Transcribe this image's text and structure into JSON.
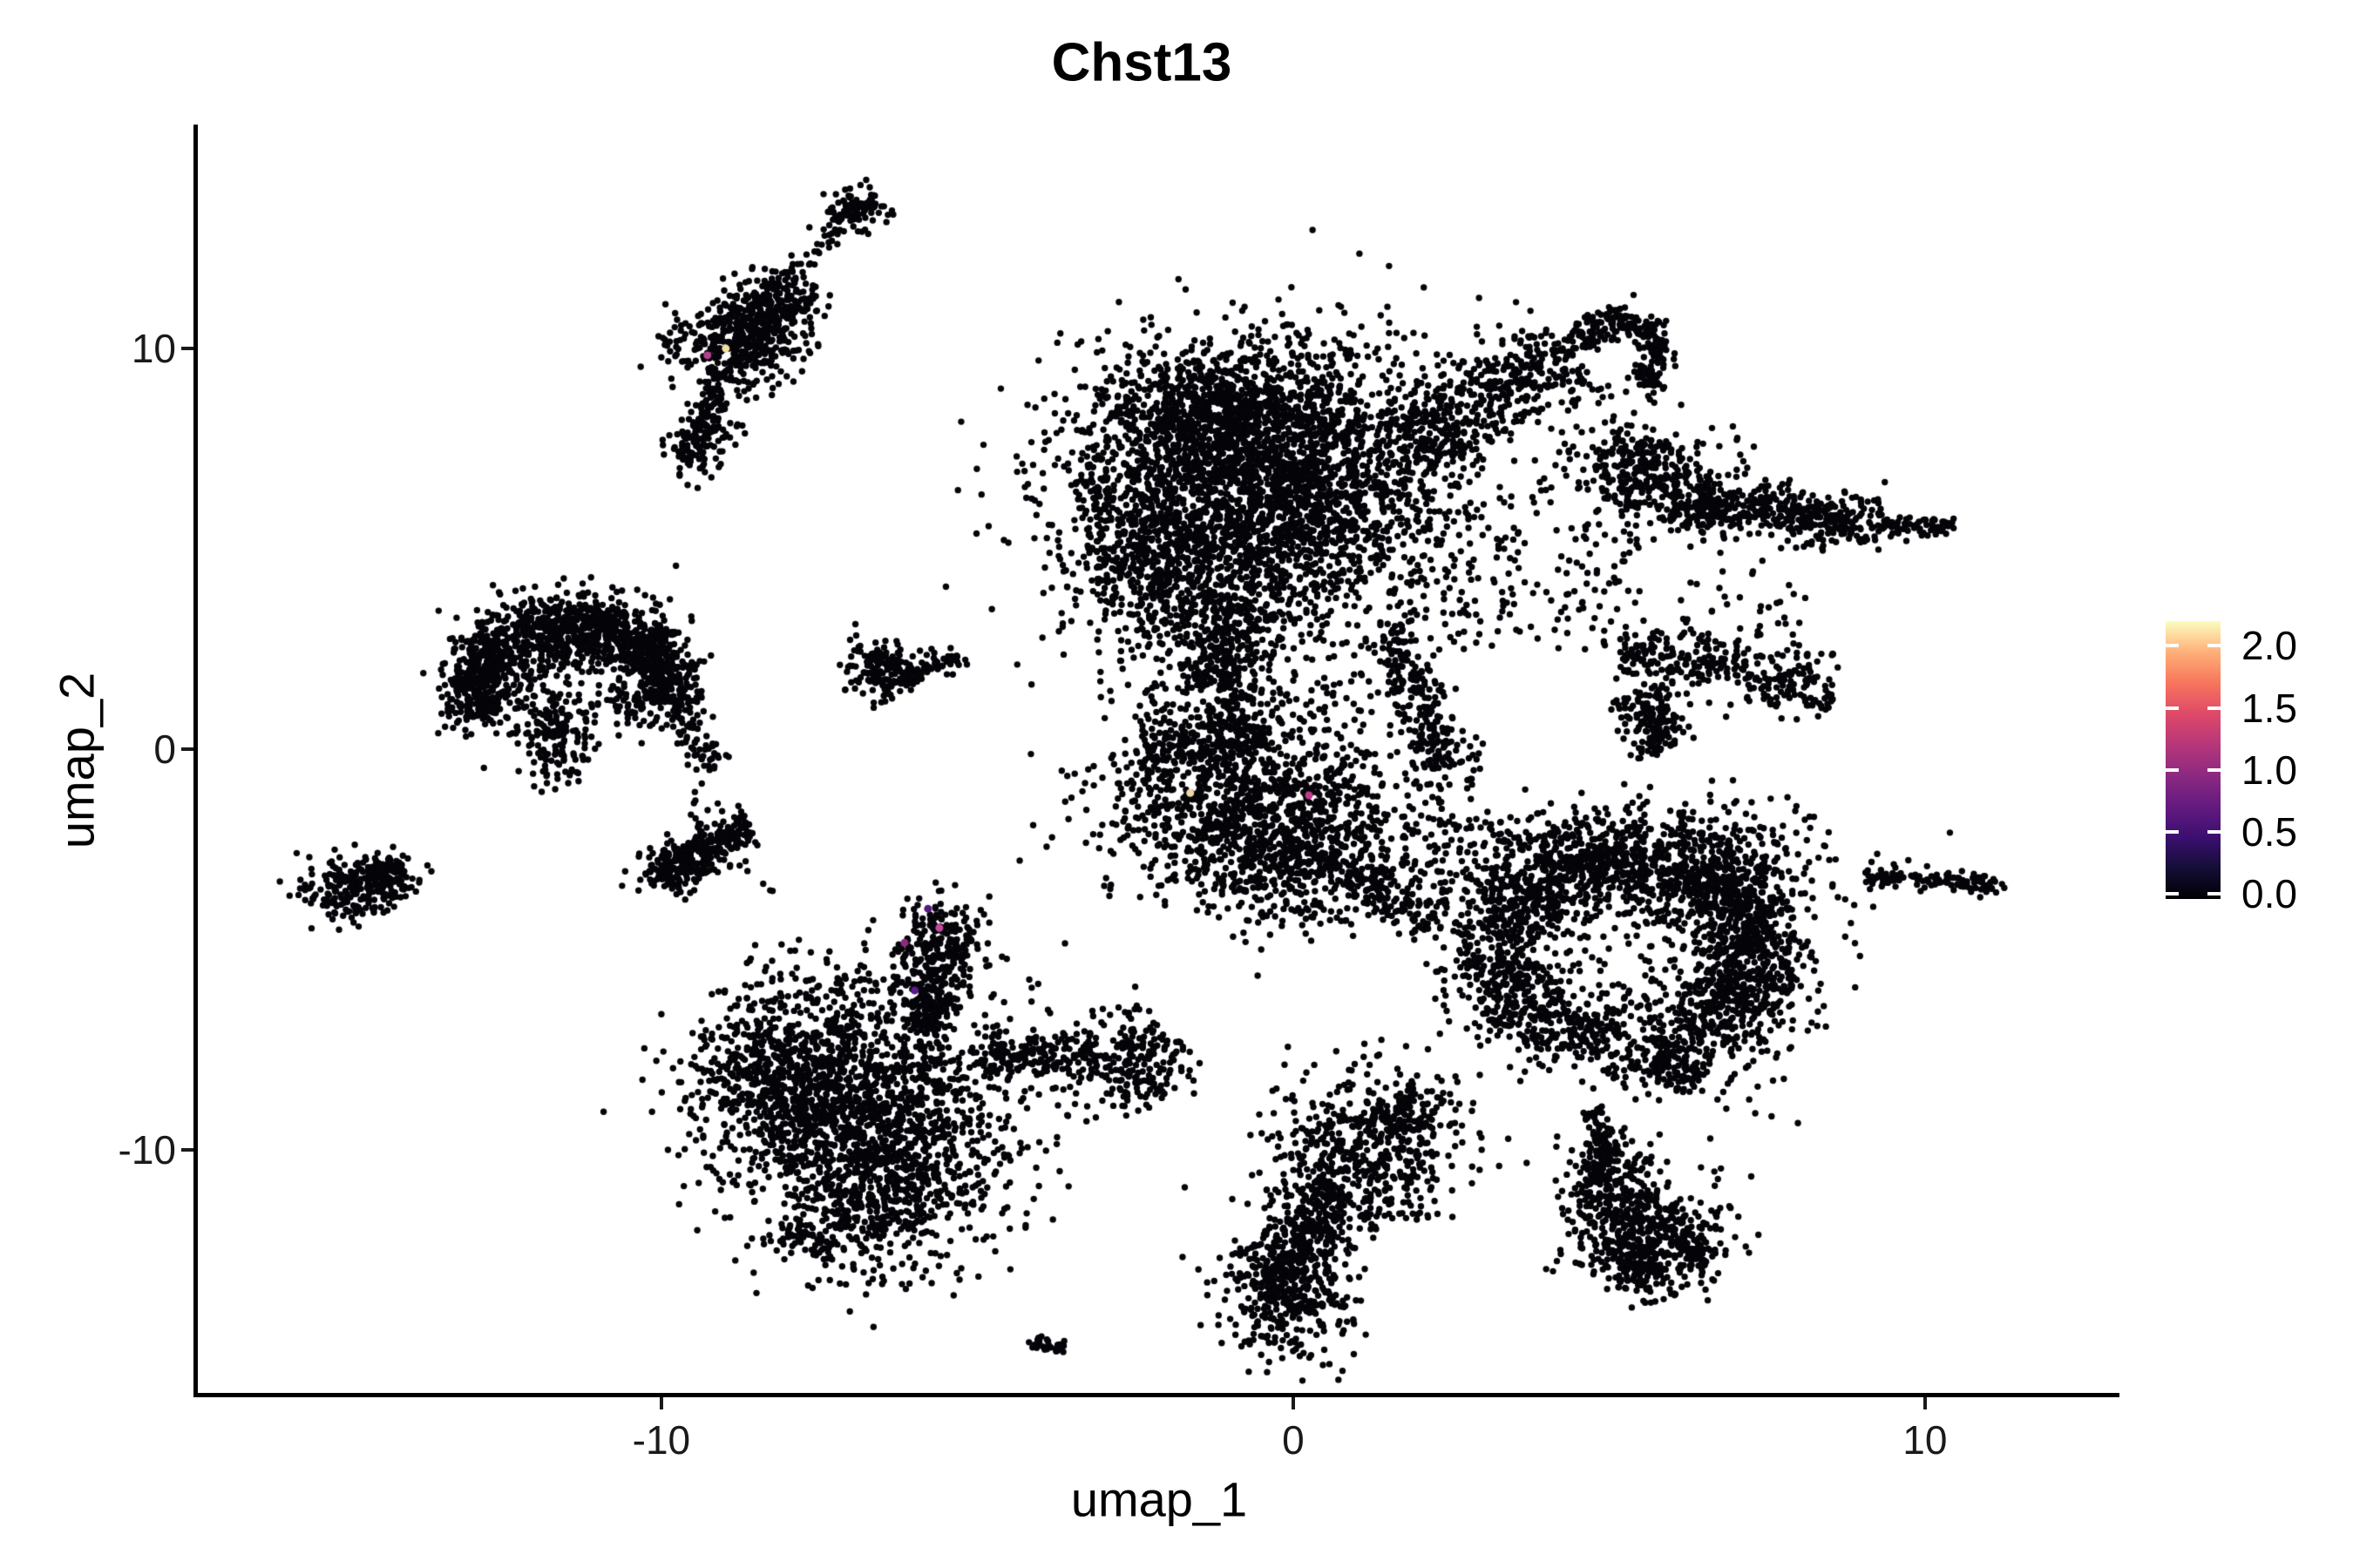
{
  "chart_data": {
    "type": "scatter",
    "title": "Chst13",
    "xlabel": "umap_1",
    "ylabel": "umap_2",
    "xlim": [
      -17.35,
      13.05
    ],
    "ylim": [
      -16.13,
      15.59
    ],
    "x_ticks": [
      -10,
      0,
      10
    ],
    "x_tick_labels": [
      "-10",
      "0",
      "10"
    ],
    "y_ticks": [
      -10,
      0,
      10
    ],
    "y_tick_labels": [
      "-10",
      "0",
      "10"
    ],
    "grid": false,
    "point_color": "#050409",
    "point_radius_px": 3.7,
    "legend": {
      "position": "right",
      "title": "",
      "range": [
        -0.04,
        2.2
      ],
      "ticks": [
        0.0,
        0.5,
        1.0,
        1.5,
        2.0
      ],
      "tick_labels": [
        "0.0",
        "0.5",
        "1.0",
        "1.5",
        "2.0"
      ],
      "colors": [
        "#000004",
        "#140e36",
        "#3b0f70",
        "#641a80",
        "#8c2981",
        "#b73779",
        "#de4968",
        "#f8765c",
        "#feb078",
        "#fcfdbf"
      ]
    },
    "clusters": [
      {
        "t": "band",
        "n": 90,
        "x1": -6.81,
        "y1": 13.7,
        "x2": -8.4,
        "y2": 11.2,
        "w": 0.15
      },
      {
        "t": "blob",
        "n": 70,
        "cx": -6.88,
        "cy": 13.52,
        "sx": 0.25,
        "sy": 0.26,
        "rot": -40
      },
      {
        "t": "blob",
        "n": 450,
        "cx": -8.74,
        "cy": 10.22,
        "sx": 0.52,
        "sy": 0.65,
        "rot": -35
      },
      {
        "t": "blob",
        "n": 160,
        "cx": -8.19,
        "cy": 10.98,
        "sx": 0.36,
        "sy": 0.39,
        "rot": -35
      },
      {
        "t": "band",
        "n": 70,
        "x1": -9.13,
        "y1": 9.39,
        "x2": -9.27,
        "y2": 7.72,
        "w": 0.2
      },
      {
        "t": "blob",
        "n": 110,
        "cx": -9.43,
        "cy": 7.72,
        "sx": 0.23,
        "sy": 0.48,
        "rot": 0
      },
      {
        "t": "scatter",
        "n": 8,
        "cx": -8.77,
        "cy": 7.89,
        "w": 0.55,
        "h": 0.76
      },
      {
        "t": "ring",
        "n": 700,
        "cx": -11.39,
        "cy": 1.41,
        "rx": 1.59,
        "ry": 1.85,
        "th": 0.5,
        "a0": -10,
        "a1": 200
      },
      {
        "t": "blob",
        "n": 200,
        "cx": -12.74,
        "cy": 1.63,
        "sx": 0.39,
        "sy": 0.7,
        "rot": 0
      },
      {
        "t": "blob",
        "n": 350,
        "cx": -11.43,
        "cy": 2.93,
        "sx": 0.72,
        "sy": 0.52,
        "rot": 8
      },
      {
        "t": "blob",
        "n": 240,
        "cx": -10.29,
        "cy": 2.0,
        "sx": 0.39,
        "sy": 0.65,
        "rot": 0
      },
      {
        "t": "blob",
        "n": 150,
        "cx": -11.64,
        "cy": 0.17,
        "sx": 0.28,
        "sy": 0.52,
        "rot": 0
      },
      {
        "t": "scatter",
        "n": 55,
        "cx": -11.37,
        "cy": 1.52,
        "w": 1.5,
        "h": 2.0
      },
      {
        "t": "band",
        "n": 70,
        "x1": -9.82,
        "y1": 1.04,
        "x2": -9.19,
        "y2": -0.54,
        "w": 0.22
      },
      {
        "t": "scatter",
        "n": 6,
        "cx": -9.3,
        "cy": -1.2,
        "w": 0.5,
        "h": 0.9
      },
      {
        "t": "blob",
        "n": 210,
        "cx": -14.84,
        "cy": -3.48,
        "sx": 0.41,
        "sy": 0.41,
        "rot": -12
      },
      {
        "t": "blob",
        "n": 70,
        "cx": -14.29,
        "cy": -3.04,
        "sx": 0.22,
        "sy": 0.26,
        "rot": 0
      },
      {
        "t": "scatter",
        "n": 2,
        "cx": -15.64,
        "cy": -3.37,
        "w": 0.2,
        "h": 0.2
      },
      {
        "t": "band",
        "n": 240,
        "x1": -10.01,
        "y1": -3.11,
        "x2": -8.58,
        "y2": -1.96,
        "w": 0.33
      },
      {
        "t": "blob",
        "n": 90,
        "cx": -9.85,
        "cy": -3.0,
        "sx": 0.28,
        "sy": 0.33,
        "rot": 0
      },
      {
        "t": "scatter",
        "n": 3,
        "cx": -8.36,
        "cy": -3.48,
        "w": 0.3,
        "h": 0.3
      },
      {
        "t": "blob",
        "n": 150,
        "cx": -6.51,
        "cy": 1.96,
        "sx": 0.26,
        "sy": 0.39,
        "rot": 0
      },
      {
        "t": "band",
        "n": 65,
        "x1": -6.23,
        "y1": 1.74,
        "x2": -5.13,
        "y2": 2.33,
        "w": 0.13
      },
      {
        "t": "scatter",
        "n": 4,
        "cx": -5.74,
        "cy": 2.46,
        "w": 0.85,
        "h": 0.2
      },
      {
        "t": "blob",
        "n": 240,
        "cx": -5.6,
        "cy": -4.96,
        "sx": 0.34,
        "sy": 0.65,
        "rot": 0
      },
      {
        "t": "band",
        "n": 130,
        "x1": -5.64,
        "y1": -5.76,
        "x2": -5.88,
        "y2": -7.07,
        "w": 0.3
      },
      {
        "t": "blob",
        "n": 1500,
        "cx": -6.79,
        "cy": -8.87,
        "sx": 1.13,
        "sy": 1.57,
        "rot": 0
      },
      {
        "t": "blob",
        "n": 420,
        "cx": -8.3,
        "cy": -8.22,
        "sx": 0.62,
        "sy": 1.2,
        "rot": 0
      },
      {
        "t": "blob",
        "n": 450,
        "cx": -6.61,
        "cy": -11.13,
        "sx": 0.76,
        "sy": 0.98,
        "rot": 0
      },
      {
        "t": "band",
        "n": 170,
        "x1": -4.91,
        "y1": -7.57,
        "x2": -3.09,
        "y2": -7.78,
        "w": 0.3
      },
      {
        "t": "blob",
        "n": 210,
        "cx": -2.51,
        "cy": -7.83,
        "sx": 0.37,
        "sy": 0.65,
        "rot": 0
      },
      {
        "t": "scatter",
        "n": 90,
        "cx": -5.99,
        "cy": -8.7,
        "w": 5.0,
        "h": 6.5
      },
      {
        "t": "band",
        "n": 45,
        "x1": -8.03,
        "y1": -12.0,
        "x2": -7.26,
        "y2": -12.61,
        "w": 0.17
      },
      {
        "t": "band",
        "n": 28,
        "x1": -4.17,
        "y1": -14.74,
        "x2": -3.59,
        "y2": -15.0,
        "w": 0.1
      },
      {
        "t": "blob",
        "n": 2800,
        "cx": -0.4,
        "cy": 6.41,
        "sx": 1.54,
        "sy": 1.78,
        "rot": -5
      },
      {
        "t": "blob",
        "n": 650,
        "cx": -1.16,
        "cy": 8.3,
        "sx": 1.08,
        "sy": 0.72,
        "rot": 0
      },
      {
        "t": "blob",
        "n": 520,
        "cx": -2.15,
        "cy": 4.67,
        "sx": 0.69,
        "sy": 1.2,
        "rot": 0
      },
      {
        "t": "band",
        "n": 280,
        "x1": -0.77,
        "y1": 3.8,
        "x2": -1.32,
        "y2": 1.48,
        "w": 0.55
      },
      {
        "t": "band",
        "n": 220,
        "x1": 1.49,
        "y1": 3.0,
        "x2": 2.43,
        "y2": -0.48,
        "w": 0.35
      },
      {
        "t": "band",
        "n": 450,
        "x1": 1.9,
        "y1": 7.43,
        "x2": 4.39,
        "y2": 10.04,
        "w": 0.57
      },
      {
        "t": "ring",
        "n": 240,
        "cx": 5.14,
        "cy": 9.83,
        "rx": 0.66,
        "ry": 0.83,
        "th": 0.3,
        "a0": -60,
        "a1": 170
      },
      {
        "t": "scatter",
        "n": 30,
        "cx": 4.98,
        "cy": 8.59,
        "w": 1.5,
        "h": 1.5
      },
      {
        "t": "blob",
        "n": 340,
        "cx": 5.63,
        "cy": 6.78,
        "sx": 0.62,
        "sy": 0.61,
        "rot": 15
      },
      {
        "t": "band",
        "n": 450,
        "x1": 5.99,
        "y1": 6.13,
        "x2": 9.35,
        "y2": 5.65,
        "w": 0.35
      },
      {
        "t": "band",
        "n": 70,
        "x1": 9.35,
        "y1": 5.65,
        "x2": 10.46,
        "y2": 5.48,
        "w": 0.16
      },
      {
        "t": "band",
        "n": 320,
        "x1": 5.21,
        "y1": 2.57,
        "x2": 8.58,
        "y2": 1.41,
        "w": 0.45
      },
      {
        "t": "band",
        "n": 170,
        "x1": 5.46,
        "y1": 1.48,
        "x2": 5.85,
        "y2": -0.09,
        "w": 0.38
      },
      {
        "t": "scatter",
        "n": 130,
        "cx": 4.01,
        "cy": 4.02,
        "w": 3.4,
        "h": 3.2
      },
      {
        "t": "scatter",
        "n": 60,
        "cx": 0.22,
        "cy": 9.83,
        "w": 5.5,
        "h": 1.3
      },
      {
        "t": "scatter",
        "n": 30,
        "cx": 7.12,
        "cy": 3.48,
        "w": 2.0,
        "h": 2.0
      },
      {
        "t": "scatter",
        "n": 40,
        "cx": -2.95,
        "cy": 6.52,
        "w": 1.0,
        "h": 2.5
      },
      {
        "t": "blob",
        "n": 1150,
        "cx": -0.58,
        "cy": -1.35,
        "sx": 1.21,
        "sy": 1.26,
        "rot": -15
      },
      {
        "t": "blob",
        "n": 420,
        "cx": 0.25,
        "cy": -2.78,
        "sx": 0.94,
        "sy": 0.72,
        "rot": -18
      },
      {
        "t": "band",
        "n": 220,
        "x1": -2.37,
        "y1": -0.04,
        "x2": -0.44,
        "y2": 0.48,
        "w": 0.45
      },
      {
        "t": "band",
        "n": 90,
        "x1": 1.08,
        "y1": -3.3,
        "x2": 2.18,
        "y2": -4.39,
        "w": 0.3
      },
      {
        "t": "scatter",
        "n": 55,
        "cx": -0.74,
        "cy": 1.2,
        "w": 3.6,
        "h": 1.0
      },
      {
        "t": "scatter",
        "n": 40,
        "cx": 2.43,
        "cy": -0.98,
        "w": 1.3,
        "h": 2.6
      },
      {
        "t": "ring",
        "n": 1600,
        "cx": 5.3,
        "cy": -5.04,
        "rx": 2.07,
        "ry": 2.43,
        "th": 0.85,
        "a0": 0,
        "a1": 360
      },
      {
        "t": "blob",
        "n": 520,
        "cx": 5.21,
        "cy": -2.78,
        "sx": 1.49,
        "sy": 0.65,
        "rot": 2
      },
      {
        "t": "blob",
        "n": 480,
        "cx": 7.12,
        "cy": -4.83,
        "sx": 0.63,
        "sy": 1.57,
        "rot": 0
      },
      {
        "t": "scatter",
        "n": 170,
        "cx": 5.26,
        "cy": -5.11,
        "w": 3.6,
        "h": 3.4
      },
      {
        "t": "scatter",
        "n": 90,
        "cx": 3.05,
        "cy": -5.0,
        "w": 1.6,
        "h": 4.3
      },
      {
        "t": "band",
        "n": 80,
        "x1": 5.77,
        "y1": -7.65,
        "x2": 6.34,
        "y2": -8.43,
        "w": 0.3
      },
      {
        "t": "scatter",
        "n": 45,
        "cx": 3.32,
        "cy": -2.5,
        "w": 2.4,
        "h": 1.6
      },
      {
        "t": "band",
        "n": 120,
        "x1": 9.05,
        "y1": -3.22,
        "x2": 11.28,
        "y2": -3.35,
        "w": 0.13
      },
      {
        "t": "scatter",
        "n": 3,
        "cx": 10.87,
        "cy": -3.48,
        "w": 0.5,
        "h": 0.15
      },
      {
        "t": "blob",
        "n": 450,
        "cx": 1.16,
        "cy": -9.83,
        "sx": 0.74,
        "sy": 0.98,
        "rot": -20
      },
      {
        "t": "band",
        "n": 400,
        "x1": 0.66,
        "y1": -10.91,
        "x2": -0.44,
        "y2": -13.74,
        "w": 0.55
      },
      {
        "t": "blob",
        "n": 280,
        "cx": -0.08,
        "cy": -13.74,
        "sx": 0.55,
        "sy": 0.78,
        "rot": 0
      },
      {
        "t": "blob",
        "n": 85,
        "cx": 1.81,
        "cy": -9.17,
        "sx": 0.28,
        "sy": 0.39,
        "rot": 0
      },
      {
        "t": "scatter",
        "n": 45,
        "cx": 1.77,
        "cy": -11.13,
        "w": 1.3,
        "h": 1.3
      },
      {
        "t": "scatter",
        "n": 4,
        "cx": 0.91,
        "cy": -8.48,
        "w": 0.5,
        "h": 0.3
      },
      {
        "t": "band",
        "n": 90,
        "x1": 4.74,
        "y1": -8.96,
        "x2": 4.91,
        "y2": -10.61,
        "w": 0.17
      },
      {
        "t": "blob",
        "n": 280,
        "cx": 5.02,
        "cy": -11.35,
        "sx": 0.41,
        "sy": 0.78,
        "rot": 0
      },
      {
        "t": "blob",
        "n": 340,
        "cx": 5.82,
        "cy": -12.17,
        "sx": 0.55,
        "sy": 0.74,
        "rot": -10
      },
      {
        "t": "band",
        "n": 50,
        "x1": 6.18,
        "y1": -12.39,
        "x2": 6.59,
        "y2": -12.78,
        "w": 0.2
      },
      {
        "t": "blob",
        "n": 80,
        "cx": 5.49,
        "cy": -13.0,
        "sx": 0.3,
        "sy": 0.3,
        "rot": 0
      },
      {
        "t": "scatter",
        "n": 25,
        "cx": 4.98,
        "cy": -10.22,
        "w": 0.9,
        "h": 1.2
      }
    ],
    "highlight_points": [
      {
        "x": -9.27,
        "y": 9.83,
        "color": "#b53f8f"
      },
      {
        "x": -8.98,
        "y": 10.0,
        "color": "#f2df9f"
      },
      {
        "x": -5.78,
        "y": -3.98,
        "color": "#55197f"
      },
      {
        "x": -5.6,
        "y": -4.46,
        "color": "#c2499b"
      },
      {
        "x": -6.15,
        "y": -4.83,
        "color": "#8c2981"
      },
      {
        "x": -5.99,
        "y": -6.02,
        "color": "#5b1b8a"
      },
      {
        "x": -1.63,
        "y": -1.09,
        "color": "#eed8a5"
      },
      {
        "x": 0.25,
        "y": -1.15,
        "color": "#c0398c"
      }
    ]
  }
}
